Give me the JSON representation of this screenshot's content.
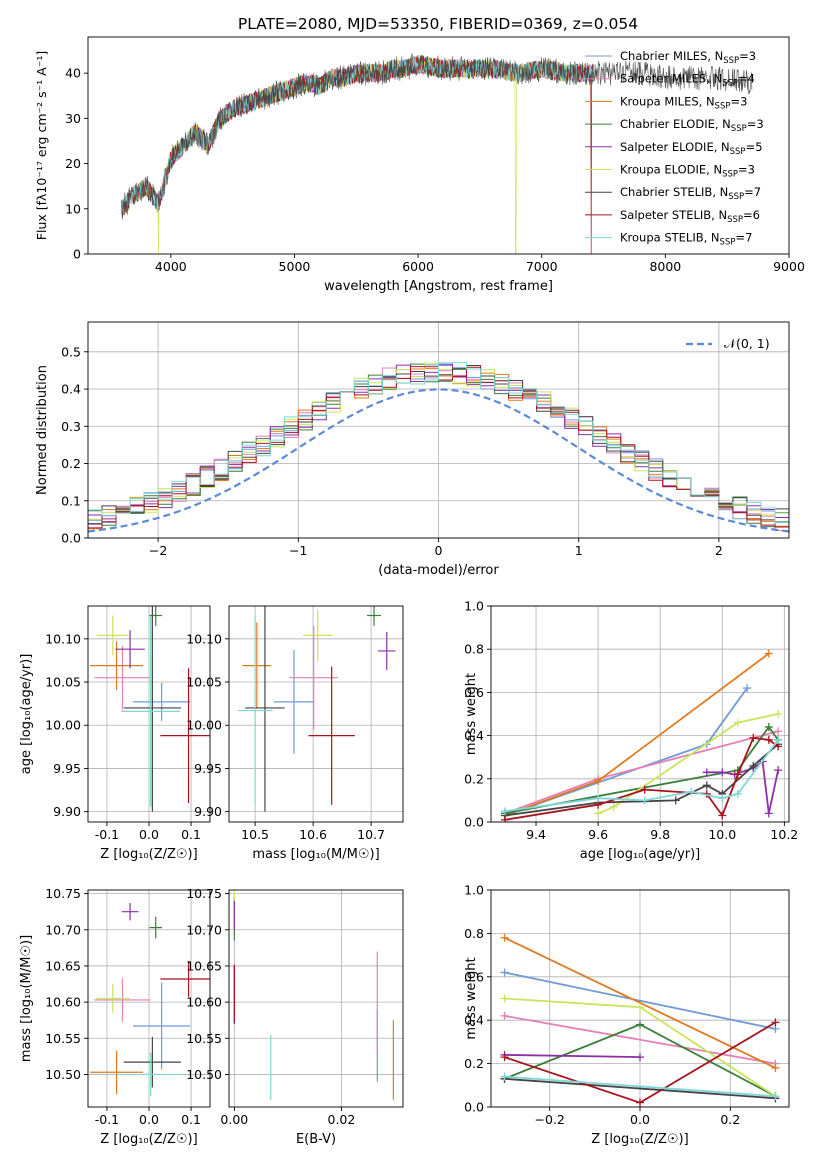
{
  "figure_title": "PLATE=2080, MJD=53350, FIBERID=0369, z=0.054",
  "colors": {
    "chabrier_miles": "#6f9bd7",
    "salpeter_miles": "#e57fb6",
    "kroupa_miles": "#e07a1f",
    "chabrier_elodie": "#3a7f3a",
    "salpeter_elodie": "#8d2fa6",
    "kroupa_elodie": "#c9e55b",
    "chabrier_stelib": "#444444",
    "salpeter_stelib": "#a8141e",
    "kroupa_stelib": "#7fd6d6",
    "gauss": "#5b8bd6",
    "grid": "#b0b0b0"
  },
  "chart_data": [
    {
      "id": "spectrum",
      "type": "line",
      "title": "PLATE=2080, MJD=53350, FIBERID=0369, z=0.054",
      "xlabel": "wavelength [Angstrom, rest frame]",
      "ylabel": "Flux [fλ10⁻¹⁷ erg cm⁻² s⁻¹ A⁻¹]",
      "xlim": [
        3330,
        9000
      ],
      "ylim": [
        0,
        48
      ],
      "xticks": [
        4000,
        5000,
        6000,
        7000,
        8000,
        9000
      ],
      "yticks": [
        0,
        10,
        20,
        30,
        40
      ],
      "grid": false,
      "legend_position": "right",
      "series": [
        {
          "name": "Chabrier MILES, N_SSP=3",
          "label": "Chabrier MILES, N",
          "ssp": "3"
        },
        {
          "name": "Salpeter MILES, N_SSP=4",
          "label": "Salpeter MILES, N",
          "ssp": "4"
        },
        {
          "name": "Kroupa MILES, N_SSP=3",
          "label": "Kroupa MILES, N",
          "ssp": "3"
        },
        {
          "name": "Chabrier ELODIE, N_SSP=3",
          "label": "Chabrier ELODIE, N",
          "ssp": "3"
        },
        {
          "name": "Salpeter ELODIE, N_SSP=5",
          "label": "Salpeter ELODIE, N",
          "ssp": "5"
        },
        {
          "name": "Kroupa ELODIE, N_SSP=3",
          "label": "Kroupa ELODIE, N",
          "ssp": "3"
        },
        {
          "name": "Chabrier STELIB, N_SSP=7",
          "label": "Chabrier STELIB, N",
          "ssp": "7"
        },
        {
          "name": "Salpeter STELIB, N_SSP=6",
          "label": "Salpeter STELIB, N",
          "ssp": "6"
        },
        {
          "name": "Kroupa STELIB, N_SSP=7",
          "label": "Kroupa STELIB, N",
          "ssp": "7"
        }
      ],
      "continuum": {
        "x": [
          3600,
          3700,
          3800,
          3900,
          4000,
          4100,
          4200,
          4300,
          4400,
          4500,
          4600,
          4700,
          4800,
          4900,
          5000,
          5100,
          5200,
          5300,
          5400,
          5500,
          5600,
          5700,
          5800,
          5900,
          6000,
          6200,
          6400,
          6600,
          6800,
          7000,
          7200,
          7400,
          7600,
          7800,
          8000,
          8200,
          8400,
          8600,
          8800
        ],
        "y": [
          10,
          13,
          15,
          11,
          21,
          24,
          27,
          24,
          30,
          32,
          33,
          34,
          35,
          36,
          37,
          38,
          37,
          39,
          39,
          40,
          40,
          40,
          41,
          41,
          42,
          41,
          41,
          41,
          40,
          41,
          40,
          40,
          40,
          40,
          39,
          39,
          39,
          38,
          38
        ]
      }
    },
    {
      "id": "residuals",
      "type": "line",
      "xlabel": "(data-model)/error",
      "ylabel": "Normed distribution",
      "xlim": [
        -2.5,
        2.5
      ],
      "ylim": [
        0,
        0.58
      ],
      "xticks": [
        -2,
        -1,
        0,
        1,
        2
      ],
      "xticklabels": [
        "−2",
        "−1",
        "0",
        "1",
        "2"
      ],
      "yticks": [
        0.0,
        0.1,
        0.2,
        0.3,
        0.4,
        0.5
      ],
      "grid": true,
      "legend": "𝒩(0, 1)",
      "legend_position": "top-right",
      "bin_width": 0.1,
      "curve": "standard normal density"
    },
    {
      "id": "age_vs_Z",
      "type": "scatter",
      "xlabel": "Z [log₁₀(Z/Z☉)]",
      "ylabel": "age  [log₁₀(age/yr)]",
      "xlim": [
        -0.145,
        0.145
      ],
      "ylim": [
        9.888,
        10.138
      ],
      "xticks": [
        -0.1,
        0.0,
        0.1
      ],
      "yticks": [
        9.9,
        9.95,
        10.0,
        10.05,
        10.1
      ],
      "grid": true,
      "points": [
        {
          "series": "Chabrier MILES",
          "x": 0.03,
          "y": 10.027,
          "xerr": 0.068,
          "yerr": 0.022
        },
        {
          "series": "Salpeter MILES",
          "x": -0.063,
          "y": 10.055,
          "xerr": 0.067,
          "yerr": 0.037
        },
        {
          "series": "Kroupa MILES",
          "x": -0.077,
          "y": 10.069,
          "xerr": 0.063,
          "yerr": 0.028
        },
        {
          "series": "Chabrier ELODIE",
          "x": 0.016,
          "y": 10.127,
          "xerr": 0.015,
          "yerr": 0.012
        },
        {
          "series": "Salpeter ELODIE",
          "x": -0.045,
          "y": 10.088,
          "xerr": 0.035,
          "yerr": 0.022
        },
        {
          "series": "Kroupa ELODIE",
          "x": -0.086,
          "y": 10.104,
          "xerr": 0.038,
          "yerr": 0.023
        },
        {
          "series": "Chabrier STELIB",
          "x": 0.008,
          "y": 10.02,
          "xerr": 0.068,
          "yerr": 0.12
        },
        {
          "series": "Salpeter STELIB",
          "x": 0.094,
          "y": 9.988,
          "xerr": 0.067,
          "yerr": 0.078
        },
        {
          "series": "Kroupa STELIB",
          "x": 0.004,
          "y": 10.016,
          "xerr": 0.07,
          "yerr": 0.11
        }
      ]
    },
    {
      "id": "age_vs_mass",
      "type": "scatter",
      "xlabel": "mass [log₁₀(M/M☉)]",
      "xlim": [
        10.455,
        10.755
      ],
      "ylim": [
        9.888,
        10.138
      ],
      "xticks": [
        10.5,
        10.6,
        10.7
      ],
      "yticks": [
        9.9,
        9.95,
        10.0,
        10.05,
        10.1
      ],
      "grid": true,
      "points": [
        {
          "series": "Chabrier MILES",
          "x": 10.567,
          "y": 10.027,
          "xerr": 0.035,
          "yerr": 0.06
        },
        {
          "series": "Salpeter MILES",
          "x": 10.601,
          "y": 10.055,
          "xerr": 0.042,
          "yerr": 0.06
        },
        {
          "series": "Kroupa MILES",
          "x": 10.503,
          "y": 10.069,
          "xerr": 0.025,
          "yerr": 0.05
        },
        {
          "series": "Chabrier ELODIE",
          "x": 10.705,
          "y": 10.127,
          "xerr": 0.012,
          "yerr": 0.012
        },
        {
          "series": "Salpeter ELODIE",
          "x": 10.727,
          "y": 10.086,
          "xerr": 0.015,
          "yerr": 0.022
        },
        {
          "series": "Kroupa ELODIE",
          "x": 10.608,
          "y": 10.104,
          "xerr": 0.025,
          "yerr": 0.03
        },
        {
          "series": "Chabrier STELIB",
          "x": 10.517,
          "y": 10.02,
          "xerr": 0.034,
          "yerr": 0.12
        },
        {
          "series": "Salpeter STELIB",
          "x": 10.632,
          "y": 9.988,
          "xerr": 0.04,
          "yerr": 0.08
        },
        {
          "series": "Kroupa STELIB",
          "x": 10.5,
          "y": 10.017,
          "xerr": 0.03,
          "yerr": 0.11
        }
      ]
    },
    {
      "id": "weight_vs_age",
      "type": "line",
      "xlabel": "age  [log₁₀(age/yr)]",
      "ylabel": "mass weight",
      "xlim": [
        9.255,
        10.215
      ],
      "ylim": [
        0,
        1
      ],
      "xticks": [
        9.4,
        9.6,
        9.8,
        10.0,
        10.2
      ],
      "yticks": [
        0.0,
        0.2,
        0.4,
        0.6,
        0.8,
        1.0
      ],
      "grid": true,
      "series": [
        {
          "series": "Chabrier MILES",
          "x": [
            9.3,
            9.95,
            10.08
          ],
          "y": [
            0.03,
            0.36,
            0.62
          ]
        },
        {
          "series": "Salpeter MILES",
          "x": [
            9.3,
            9.6,
            10.18
          ],
          "y": [
            0.04,
            0.2,
            0.42
          ]
        },
        {
          "series": "Kroupa MILES",
          "x": [
            9.3,
            9.6,
            10.15
          ],
          "y": [
            0.03,
            0.19,
            0.78
          ]
        },
        {
          "series": "Chabrier ELODIE",
          "x": [
            9.3,
            10.05,
            10.15,
            10.18
          ],
          "y": [
            0.04,
            0.24,
            0.44,
            0.38
          ]
        },
        {
          "series": "Salpeter ELODIE",
          "x": [
            9.95,
            10.0,
            10.04,
            10.1,
            10.13,
            10.15,
            10.18
          ],
          "y": [
            0.23,
            0.23,
            0.22,
            0.25,
            0.28,
            0.04,
            0.24
          ]
        },
        {
          "series": "Kroupa ELODIE",
          "x": [
            9.6,
            9.65,
            10.05,
            10.18
          ],
          "y": [
            0.04,
            0.07,
            0.46,
            0.5
          ]
        },
        {
          "series": "Chabrier STELIB",
          "x": [
            9.3,
            9.6,
            9.85,
            9.95,
            10.0,
            10.1,
            10.18
          ],
          "y": [
            0.03,
            0.09,
            0.1,
            0.17,
            0.13,
            0.26,
            0.36
          ]
        },
        {
          "series": "Salpeter STELIB",
          "x": [
            9.3,
            9.6,
            9.75,
            9.95,
            10.0,
            10.05,
            10.1,
            10.15,
            10.18
          ],
          "y": [
            0.01,
            0.08,
            0.15,
            0.13,
            0.03,
            0.22,
            0.39,
            0.38,
            0.35
          ]
        },
        {
          "series": "Kroupa STELIB",
          "x": [
            9.3,
            9.6,
            9.75,
            9.9,
            10.0,
            10.05,
            10.18
          ],
          "y": [
            0.05,
            0.11,
            0.1,
            0.14,
            0.11,
            0.13,
            0.38
          ]
        }
      ]
    },
    {
      "id": "mass_vs_Z",
      "type": "scatter",
      "xlabel": "Z [log₁₀(Z/Z☉)]",
      "ylabel": "mass [log₁₀(M/M☉)]",
      "xlim": [
        -0.145,
        0.145
      ],
      "ylim": [
        10.455,
        10.755
      ],
      "xticks": [
        -0.1,
        0.0,
        0.1
      ],
      "yticks": [
        10.5,
        10.55,
        10.6,
        10.65,
        10.7,
        10.75
      ],
      "grid": true,
      "points": [
        {
          "series": "Chabrier MILES",
          "x": 0.03,
          "y": 10.567,
          "xerr": 0.068,
          "yerr": 0.06
        },
        {
          "series": "Salpeter MILES",
          "x": -0.063,
          "y": 10.603,
          "xerr": 0.067,
          "yerr": 0.03
        },
        {
          "series": "Kroupa MILES",
          "x": -0.077,
          "y": 10.503,
          "xerr": 0.063,
          "yerr": 0.03
        },
        {
          "series": "Chabrier ELODIE",
          "x": 0.016,
          "y": 10.703,
          "xerr": 0.015,
          "yerr": 0.015
        },
        {
          "series": "Salpeter ELODIE",
          "x": -0.045,
          "y": 10.725,
          "xerr": 0.02,
          "yerr": 0.012
        },
        {
          "series": "Kroupa ELODIE",
          "x": -0.086,
          "y": 10.605,
          "xerr": 0.04,
          "yerr": 0.02
        },
        {
          "series": "Chabrier STELIB",
          "x": 0.008,
          "y": 10.517,
          "xerr": 0.068,
          "yerr": 0.035
        },
        {
          "series": "Salpeter STELIB",
          "x": 0.094,
          "y": 10.632,
          "xerr": 0.067,
          "yerr": 0.025
        },
        {
          "series": "Kroupa STELIB",
          "x": 0.004,
          "y": 10.5,
          "xerr": 0.08,
          "yerr": 0.03
        }
      ]
    },
    {
      "id": "mass_vs_ebv",
      "type": "scatter",
      "xlabel": "E(B-V)",
      "xlim": [
        -0.001,
        0.0315
      ],
      "ylim": [
        10.455,
        10.755
      ],
      "xticks": [
        0.0,
        0.02
      ],
      "xticklabels": [
        "0.00",
        "0.02"
      ],
      "yticks": [
        10.5,
        10.55,
        10.6,
        10.65,
        10.7,
        10.75
      ],
      "grid": true,
      "points": [
        {
          "series": "Chabrier MILES",
          "x": 0.0267,
          "y": 10.54,
          "yerr": 0.05
        },
        {
          "series": "Salpeter MILES",
          "x": 0.0267,
          "y": 10.6,
          "yerr": 0.07
        },
        {
          "series": "Kroupa MILES",
          "x": 0.0297,
          "y": 10.52,
          "yerr": 0.055
        },
        {
          "series": "Chabrier ELODIE",
          "x": 0.0,
          "y": 10.715,
          "yerr": 0.03
        },
        {
          "series": "Salpeter ELODIE",
          "x": 0.0,
          "y": 10.72,
          "yerr": 0.02
        },
        {
          "series": "Kroupa ELODIE",
          "x": 0.0,
          "y": 10.75,
          "yerr": 0.01
        },
        {
          "series": "Chabrier STELIB",
          "x": 0.0,
          "y": 10.61,
          "yerr": 0.04
        },
        {
          "series": "Salpeter STELIB",
          "x": 0.0,
          "y": 10.612,
          "yerr": 0.04
        },
        {
          "series": "Kroupa STELIB",
          "x": 0.0068,
          "y": 10.51,
          "yerr": 0.045
        }
      ]
    },
    {
      "id": "weight_vs_Z",
      "type": "line",
      "xlabel": "Z [log₁₀(Z/Z☉)]",
      "ylabel": "mass weight",
      "xlim": [
        -0.33,
        0.33
      ],
      "ylim": [
        0,
        1
      ],
      "xticks": [
        -0.2,
        0.0,
        0.2
      ],
      "xticklabels": [
        "−0.2",
        "0.0",
        "0.2"
      ],
      "yticks": [
        0.0,
        0.2,
        0.4,
        0.6,
        0.8,
        1.0
      ],
      "grid": true,
      "series": [
        {
          "series": "Chabrier MILES",
          "x": [
            -0.3,
            0.3
          ],
          "y": [
            0.62,
            0.36
          ]
        },
        {
          "series": "Salpeter MILES",
          "x": [
            -0.3,
            0.3
          ],
          "y": [
            0.42,
            0.2
          ]
        },
        {
          "series": "Kroupa MILES",
          "x": [
            -0.3,
            0.3
          ],
          "y": [
            0.78,
            0.18
          ]
        },
        {
          "series": "Chabrier ELODIE",
          "x": [
            -0.3,
            0.0,
            0.3
          ],
          "y": [
            0.13,
            0.38,
            0.05
          ]
        },
        {
          "series": "Salpeter ELODIE",
          "x": [
            -0.3,
            0.0
          ],
          "y": [
            0.24,
            0.23
          ]
        },
        {
          "series": "Kroupa ELODIE",
          "x": [
            -0.3,
            0.0,
            0.3
          ],
          "y": [
            0.5,
            0.46,
            0.05
          ]
        },
        {
          "series": "Chabrier STELIB",
          "x": [
            -0.3,
            0.3
          ],
          "y": [
            0.13,
            0.04
          ]
        },
        {
          "series": "Salpeter STELIB",
          "x": [
            -0.3,
            0.0,
            0.3
          ],
          "y": [
            0.23,
            0.02,
            0.39
          ]
        },
        {
          "series": "Kroupa STELIB",
          "x": [
            -0.3,
            0.3
          ],
          "y": [
            0.14,
            0.05
          ]
        }
      ]
    }
  ]
}
